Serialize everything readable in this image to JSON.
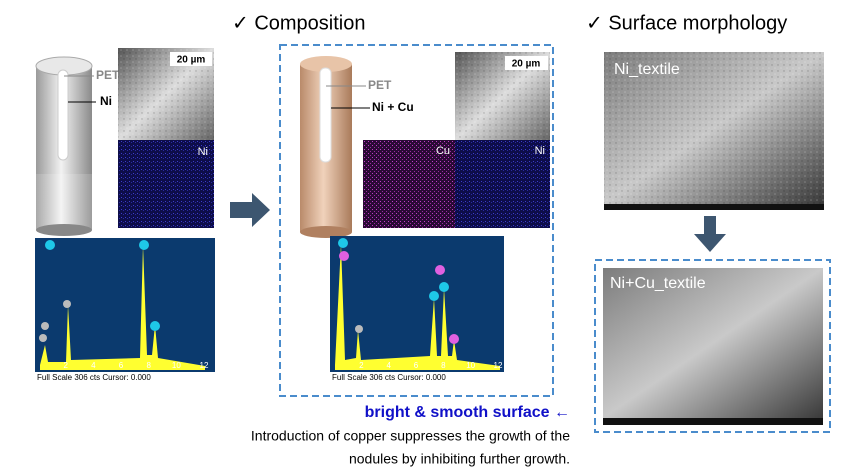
{
  "headings": {
    "composition": "✓  Composition",
    "surface": "✓  Surface morphology"
  },
  "ni_panel": {
    "pet": "PET",
    "metal": "Ni",
    "scale": "20 µm",
    "map": "Ni",
    "footer": "Full Scale 306 cts Cursor: 0.000"
  },
  "cu_panel": {
    "pet": "PET",
    "metal": "Ni + Cu",
    "scale": "20 µm",
    "map_cu": "Cu",
    "map_ni": "Ni",
    "footer": "Full Scale 306 cts Cursor: 0.000"
  },
  "spectrum_ticks": [
    2,
    4,
    6,
    8,
    10,
    12
  ],
  "morphology": {
    "top": "Ni_textile",
    "bottom": "Ni+Cu_textile"
  },
  "note": {
    "highlight": "bright & smooth surface ←",
    "lines": [
      "Introduction of copper suppresses the growth of the",
      "nodules by inhibiting further growth."
    ]
  }
}
